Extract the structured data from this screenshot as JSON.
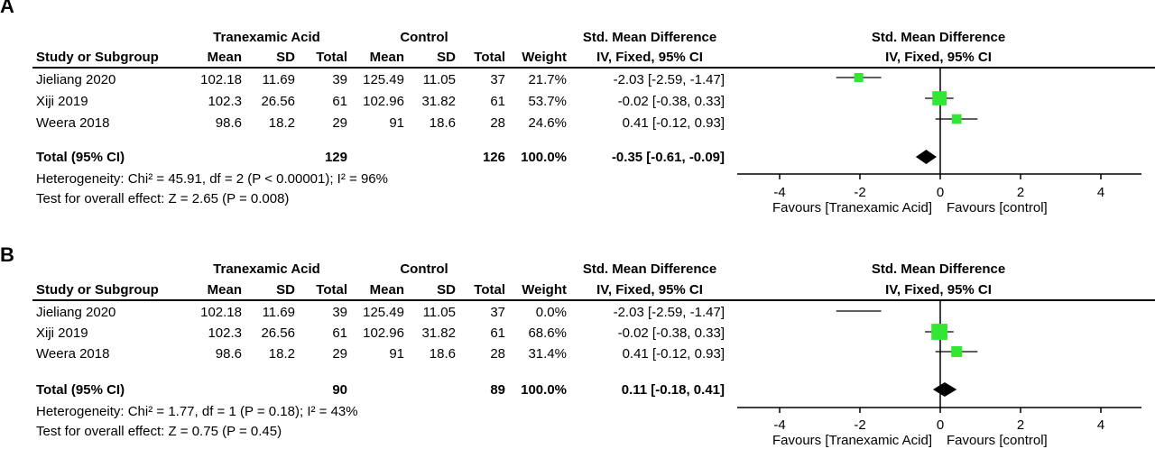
{
  "chart_data": [
    {
      "type": "forest",
      "panel_label": "A",
      "columns": {
        "group1": "Tranexamic Acid",
        "group2": "Control",
        "study": "Study or Subgroup",
        "mean": "Mean",
        "sd": "SD",
        "total": "Total",
        "weight": "Weight",
        "effect_title": "Std. Mean Difference",
        "effect_method": "IV, Fixed, 95% CI"
      },
      "studies": [
        {
          "name": "Jieliang 2020",
          "mean1": "102.18",
          "sd1": "11.69",
          "n1": "39",
          "mean2": "125.49",
          "sd2": "11.05",
          "n2": "37",
          "weight": "21.7%",
          "ci_text": "-2.03 [-2.59, -1.47]",
          "est": -2.03,
          "lo": -2.59,
          "hi": -1.47,
          "w": 21.7
        },
        {
          "name": "Xiji 2019",
          "mean1": "102.3",
          "sd1": "26.56",
          "n1": "61",
          "mean2": "102.96",
          "sd2": "31.82",
          "n2": "61",
          "weight": "53.7%",
          "ci_text": "-0.02 [-0.38, 0.33]",
          "est": -0.02,
          "lo": -0.38,
          "hi": 0.33,
          "w": 53.7
        },
        {
          "name": "Weera 2018",
          "mean1": "98.6",
          "sd1": "18.2",
          "n1": "29",
          "mean2": "91",
          "sd2": "18.6",
          "n2": "28",
          "weight": "24.6%",
          "ci_text": "0.41 [-0.12, 0.93]",
          "est": 0.41,
          "lo": -0.12,
          "hi": 0.93,
          "w": 24.6
        }
      ],
      "total": {
        "label": "Total (95% CI)",
        "n1": "129",
        "n2": "126",
        "weight": "100.0%",
        "ci_text": "-0.35 [-0.61, -0.09]",
        "est": -0.35,
        "lo": -0.61,
        "hi": -0.09
      },
      "heterogeneity": "Heterogeneity: Chi² = 45.91, df = 2 (P < 0.00001); I² = 96%",
      "overall_test": "Test for overall effect: Z = 2.65 (P = 0.008)",
      "axis": {
        "xlim": [
          -5,
          5
        ],
        "ticks": [
          -4,
          -2,
          0,
          2,
          4
        ],
        "tick_labels": [
          "-4",
          "-2",
          "0",
          "2",
          "4"
        ]
      },
      "favours_left": "Favours [Tranexamic Acid]",
      "favours_right": "Favours [control]",
      "colors": {
        "study_marker": "#33e633",
        "summary_marker": "#000000"
      }
    },
    {
      "type": "forest",
      "panel_label": "B",
      "columns": {
        "group1": "Tranexamic Acid",
        "group2": "Control",
        "study": "Study or Subgroup",
        "mean": "Mean",
        "sd": "SD",
        "total": "Total",
        "weight": "Weight",
        "effect_title": "Std. Mean Difference",
        "effect_method": "IV, Fixed, 95% CI"
      },
      "studies": [
        {
          "name": "Jieliang 2020",
          "mean1": "102.18",
          "sd1": "11.69",
          "n1": "39",
          "mean2": "125.49",
          "sd2": "11.05",
          "n2": "37",
          "weight": "0.0%",
          "ci_text": "-2.03 [-2.59, -1.47]",
          "est": -2.03,
          "lo": -2.59,
          "hi": -1.47,
          "w": 0
        },
        {
          "name": "Xiji 2019",
          "mean1": "102.3",
          "sd1": "26.56",
          "n1": "61",
          "mean2": "102.96",
          "sd2": "31.82",
          "n2": "61",
          "weight": "68.6%",
          "ci_text": "-0.02 [-0.38, 0.33]",
          "est": -0.02,
          "lo": -0.38,
          "hi": 0.33,
          "w": 68.6
        },
        {
          "name": "Weera 2018",
          "mean1": "98.6",
          "sd1": "18.2",
          "n1": "29",
          "mean2": "91",
          "sd2": "18.6",
          "n2": "28",
          "weight": "31.4%",
          "ci_text": "0.41 [-0.12, 0.93]",
          "est": 0.41,
          "lo": -0.12,
          "hi": 0.93,
          "w": 31.4
        }
      ],
      "total": {
        "label": "Total (95% CI)",
        "n1": "90",
        "n2": "89",
        "weight": "100.0%",
        "ci_text": "0.11 [-0.18, 0.41]",
        "est": 0.11,
        "lo": -0.18,
        "hi": 0.41
      },
      "heterogeneity": "Heterogeneity: Chi² = 1.77, df = 1 (P = 0.18); I² = 43%",
      "overall_test": "Test for overall effect: Z = 0.75 (P = 0.45)",
      "axis": {
        "xlim": [
          -5,
          5
        ],
        "ticks": [
          -4,
          -2,
          0,
          2,
          4
        ],
        "tick_labels": [
          "-4",
          "-2",
          "0",
          "2",
          "4"
        ]
      },
      "favours_left": "Favours [Tranexamic Acid]",
      "favours_right": "Favours [control]",
      "colors": {
        "study_marker": "#33e633",
        "summary_marker": "#000000"
      }
    }
  ]
}
